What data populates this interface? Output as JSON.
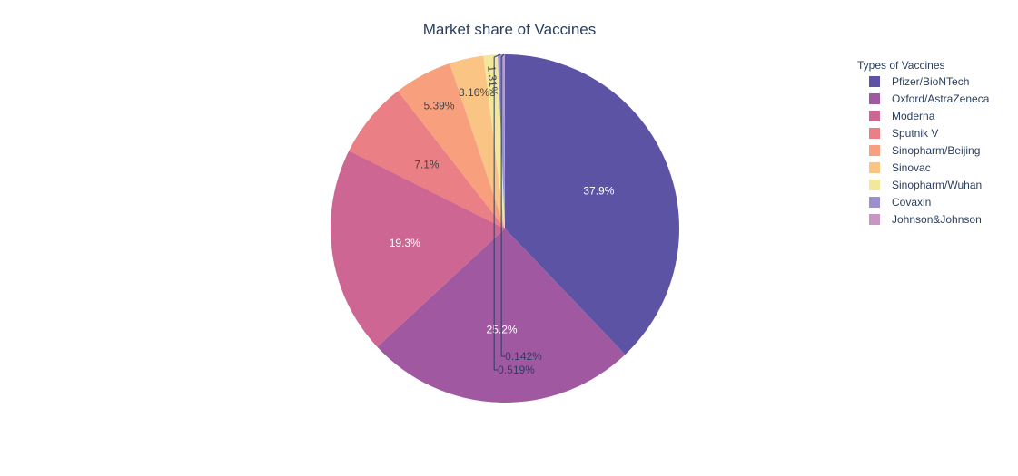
{
  "chart_data": {
    "type": "pie",
    "title": "Market share of Vaccines",
    "legend_title": "Types of Vaccines",
    "legend_position": "right",
    "slices": [
      {
        "label": "Pfizer/BioNTech",
        "value": 37.9,
        "text": "37.9%",
        "color": "#5c53a5"
      },
      {
        "label": "Oxford/AstraZeneca",
        "value": 25.2,
        "text": "25.2%",
        "color": "#a059a0"
      },
      {
        "label": "Moderna",
        "value": 19.3,
        "text": "19.3%",
        "color": "#ce6693"
      },
      {
        "label": "Sputnik V",
        "value": 7.1,
        "text": "7.1%",
        "color": "#eb7f86"
      },
      {
        "label": "Sinopharm/Beijing",
        "value": 5.39,
        "text": "5.39%",
        "color": "#f8a07e"
      },
      {
        "label": "Sinovac",
        "value": 3.16,
        "text": "3.16%",
        "color": "#fac484"
      },
      {
        "label": "Sinopharm/Wuhan",
        "value": 1.31,
        "text": "1.31%",
        "color": "#f3e79b"
      },
      {
        "label": "Covaxin",
        "value": 0.519,
        "text": "0.519%",
        "color": "#9a90d0"
      },
      {
        "label": "Johnson&Johnson",
        "value": 0.142,
        "text": "0.142%",
        "color": "#c895c5"
      }
    ]
  }
}
